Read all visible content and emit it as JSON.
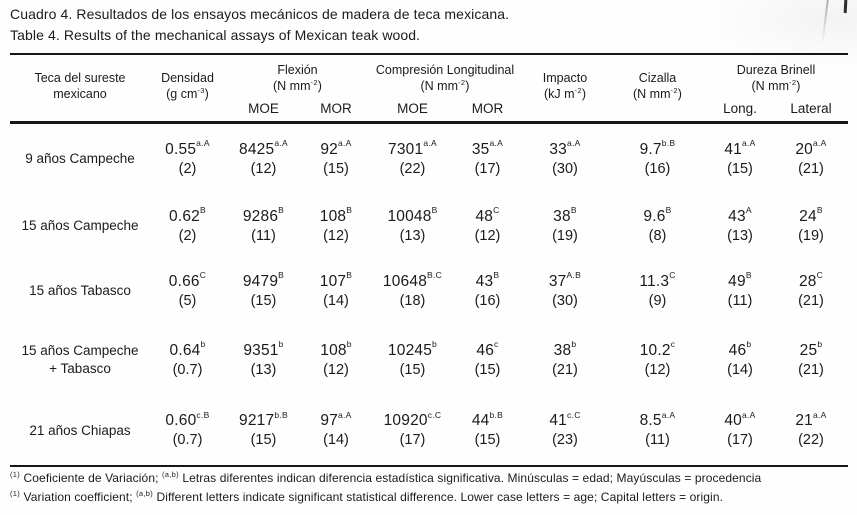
{
  "document": {
    "caption_es": "Cuadro 4. Resultados de los ensayos mecánicos de madera de teca mexicana.",
    "caption_en": "Table 4. Results of the mechanical assays of Mexican teak wood."
  },
  "table": {
    "row_header": {
      "line1": "Teca del sureste",
      "line2": "mexicano"
    },
    "groups": [
      {
        "name": "Densidad",
        "unit": "(g cm^-3^)"
      },
      {
        "name": "Flexión",
        "unit": "(N mm^-2^)",
        "subs": [
          "MOE",
          "MOR"
        ]
      },
      {
        "name": "Compresión Longitudinal",
        "unit": "(N mm^-2^)",
        "subs": [
          "MOE",
          "MOR"
        ]
      },
      {
        "name": "Impacto",
        "unit": "(kJ m^-2^)"
      },
      {
        "name": "Cizalla",
        "unit": "(N mm^-2^)"
      },
      {
        "name": "Dureza Brinell",
        "unit": "(N mm^-2^)",
        "subs": [
          "Long.",
          "Lateral"
        ]
      }
    ],
    "rows": [
      {
        "label": "9 años Campeche",
        "cells": [
          {
            "v": "0.55",
            "sup": "a.A",
            "cv": "(2)"
          },
          {
            "v": "8425",
            "sup": "a.A",
            "cv": "(12)"
          },
          {
            "v": "92",
            "sup": "a.A",
            "cv": "(15)"
          },
          {
            "v": "7301",
            "sup": "a.A",
            "cv": "(22)"
          },
          {
            "v": "35",
            "sup": "a.A",
            "cv": "(17)"
          },
          {
            "v": "33",
            "sup": "a.A",
            "cv": "(30)"
          },
          {
            "v": "9.7",
            "sup": "b.B",
            "cv": "(16)"
          },
          {
            "v": "41",
            "sup": "a.A",
            "cv": "(15)"
          },
          {
            "v": "20",
            "sup": "a.A",
            "cv": "(21)"
          }
        ]
      },
      {
        "label": "15 años Campeche",
        "cells": [
          {
            "v": "0.62",
            "sup": "B",
            "cv": "(2)"
          },
          {
            "v": "9286",
            "sup": "B",
            "cv": "(11)"
          },
          {
            "v": "108",
            "sup": "B",
            "cv": "(12)"
          },
          {
            "v": "10048",
            "sup": "B",
            "cv": "(13)"
          },
          {
            "v": "48",
            "sup": "C",
            "cv": "(12)"
          },
          {
            "v": "38",
            "sup": "B",
            "cv": "(19)"
          },
          {
            "v": "9.6",
            "sup": "B",
            "cv": "(8)"
          },
          {
            "v": "43",
            "sup": "A",
            "cv": "(13)"
          },
          {
            "v": "24",
            "sup": "B",
            "cv": "(19)"
          }
        ]
      },
      {
        "label": "15 años Tabasco",
        "cells": [
          {
            "v": "0.66",
            "sup": "C",
            "cv": "(5)"
          },
          {
            "v": "9479",
            "sup": "B",
            "cv": "(15)"
          },
          {
            "v": "107",
            "sup": "B",
            "cv": "(14)"
          },
          {
            "v": "10648",
            "sup": "B.C",
            "cv": "(18)"
          },
          {
            "v": "43",
            "sup": "B",
            "cv": "(16)"
          },
          {
            "v": "37",
            "sup": "A.B",
            "cv": "(30)"
          },
          {
            "v": "11.3",
            "sup": "C",
            "cv": "(9)"
          },
          {
            "v": "49",
            "sup": "B",
            "cv": "(11)"
          },
          {
            "v": "28",
            "sup": "C",
            "cv": "(21)"
          }
        ]
      },
      {
        "label": "15 años Campeche\n+ Tabasco",
        "cells": [
          {
            "v": "0.64",
            "sup": "b",
            "cv": "(0.7)"
          },
          {
            "v": "9351",
            "sup": "b",
            "cv": "(13)"
          },
          {
            "v": "108",
            "sup": "b",
            "cv": "(12)"
          },
          {
            "v": "10245",
            "sup": "b",
            "cv": "(15)"
          },
          {
            "v": "46",
            "sup": "c",
            "cv": "(15)"
          },
          {
            "v": "38",
            "sup": "b",
            "cv": "(21)"
          },
          {
            "v": "10.2",
            "sup": "c",
            "cv": "(12)"
          },
          {
            "v": "46",
            "sup": "b",
            "cv": "(14)"
          },
          {
            "v": "25",
            "sup": "b",
            "cv": "(21)"
          }
        ]
      },
      {
        "label": "21 años Chiapas",
        "cells": [
          {
            "v": "0.60",
            "sup": "c.B",
            "cv": "(0.7)"
          },
          {
            "v": "9217",
            "sup": "b.B",
            "cv": "(15)"
          },
          {
            "v": "97",
            "sup": "a.A",
            "cv": "(14)"
          },
          {
            "v": "10920",
            "sup": "c.C",
            "cv": "(17)"
          },
          {
            "v": "44",
            "sup": "b.B",
            "cv": "(15)"
          },
          {
            "v": "41",
            "sup": "c.C",
            "cv": "(23)"
          },
          {
            "v": "8.5",
            "sup": "a.A",
            "cv": "(11)"
          },
          {
            "v": "40",
            "sup": "a.A",
            "cv": "(17)"
          },
          {
            "v": "21",
            "sup": "a.A",
            "cv": "(22)"
          }
        ]
      }
    ]
  },
  "footnotes": {
    "es": "^(1)^ Coeficiente de Variación; ^(a,b)^ Letras diferentes indican diferencia estadística significativa. Minúsculas = edad; Mayúsculas = procedencia",
    "en": "^(1)^ Variation coefficient; ^(a,b)^ Different letters indicate significant statistical difference. Lower case letters = age; Capital letters = origin."
  }
}
